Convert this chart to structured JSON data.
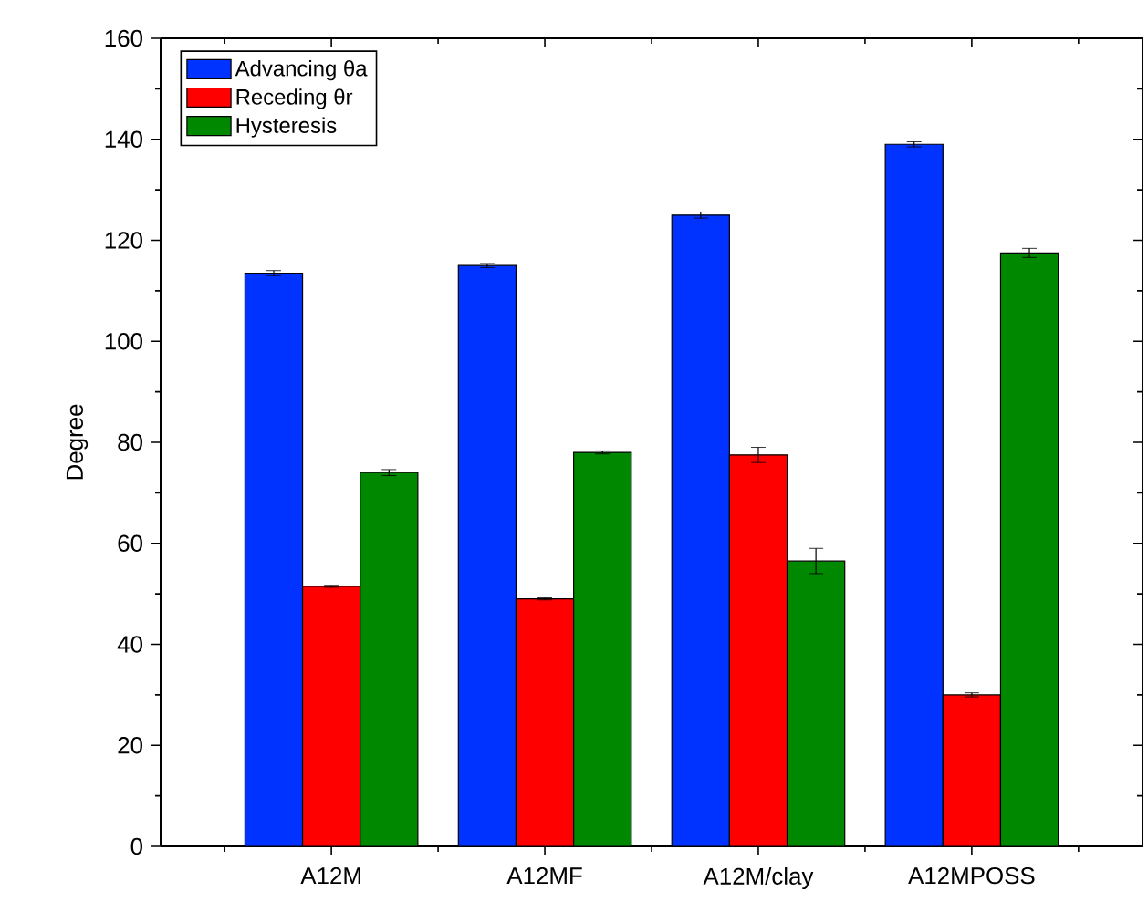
{
  "chart_data": {
    "type": "bar",
    "ylabel": "Degree",
    "categories": [
      "A12M",
      "A12MF",
      "A12M/clay",
      "A12MPOSS"
    ],
    "series": [
      {
        "name": "Advancing θa",
        "color": "#0033ff",
        "values": [
          113.5,
          115,
          125,
          139
        ],
        "errors": [
          0.5,
          0.4,
          0.6,
          0.5
        ]
      },
      {
        "name": "Receding θr",
        "color": "#ff0000",
        "values": [
          51.5,
          49,
          77.5,
          30
        ],
        "errors": [
          0.2,
          0.2,
          1.5,
          0.4
        ]
      },
      {
        "name": "Hysteresis",
        "color": "#008800",
        "values": [
          74,
          78,
          56.5,
          117.5
        ],
        "errors": [
          0.6,
          0.3,
          2.5,
          0.9
        ]
      }
    ],
    "ylim": [
      0,
      160
    ],
    "yticks": [
      0,
      20,
      40,
      60,
      80,
      100,
      120,
      140,
      160
    ],
    "legend": "top left",
    "grid": false
  }
}
